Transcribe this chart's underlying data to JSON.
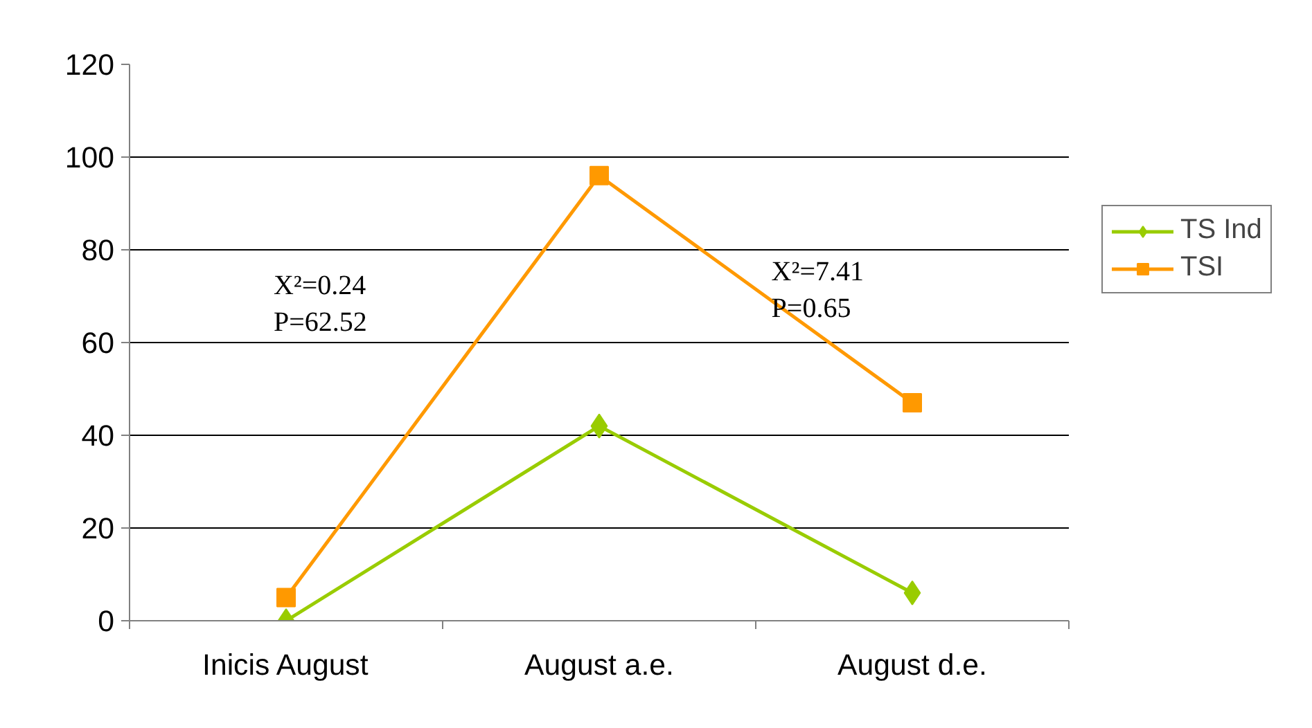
{
  "chart_data": {
    "type": "line",
    "categories": [
      "Inicis August",
      "August a.e.",
      "August d.e."
    ],
    "series": [
      {
        "name": "TS Ind",
        "color": "#99cc00",
        "marker": "diamond",
        "values": [
          0,
          42,
          6
        ]
      },
      {
        "name": "TSI",
        "color": "#ff9900",
        "marker": "square",
        "values": [
          5,
          96,
          47
        ]
      }
    ],
    "ylim": [
      0,
      120
    ],
    "yticks": [
      0,
      20,
      40,
      60,
      80,
      100,
      120
    ],
    "grid": "y",
    "legend": "right",
    "annotations": [
      "X²=0.24\nP=62.52",
      "X²=7.41\nP=0.65"
    ]
  }
}
